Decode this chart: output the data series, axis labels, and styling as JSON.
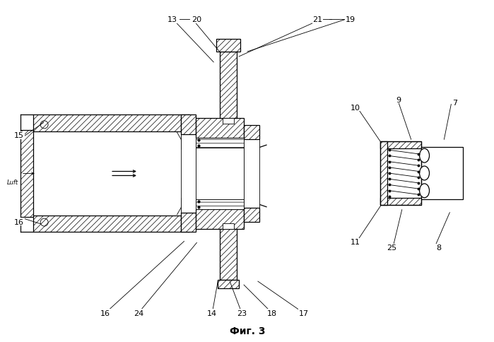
{
  "title": "Фиг. 3",
  "bg_color": "#ffffff",
  "fig_width": 6.99,
  "fig_height": 4.85,
  "dpi": 100
}
